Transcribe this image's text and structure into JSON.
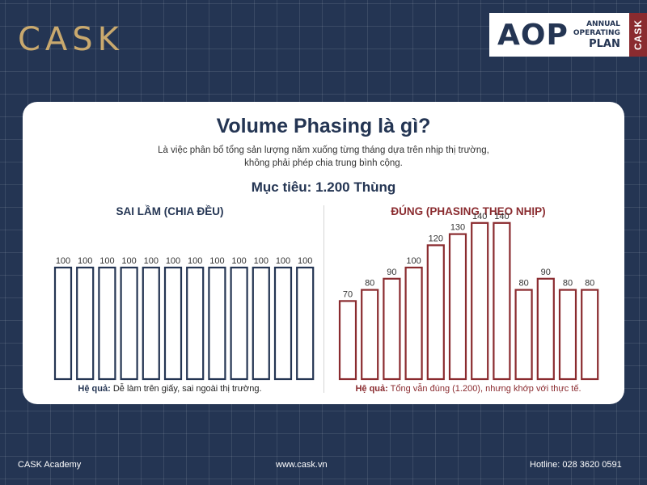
{
  "brand": "CASK",
  "badge": {
    "big": "AOP",
    "line1": "ANNUAL",
    "line2": "OPERATING",
    "line3": "PLAN",
    "tag": "CASK"
  },
  "card": {
    "title": "Volume Phasing là gì?",
    "subtitle_line1": "Là việc phân bổ tổng sản lượng năm xuống từng tháng dựa trên nhịp thị trường,",
    "subtitle_line2": "không phải phép chia trung bình cộng.",
    "goal": "Mục tiêu: 1.200 Thùng"
  },
  "footer": {
    "left": "CASK Academy",
    "center": "www.cask.vn",
    "right": "Hotline: 028 3620 0591"
  },
  "colors": {
    "navy": "#243553",
    "maroon": "#8a2b2f",
    "gold": "#c9a96e"
  },
  "chart_data": [
    {
      "type": "bar",
      "title": "SAI LẦM (CHIA ĐỀU)",
      "values": [
        100,
        100,
        100,
        100,
        100,
        100,
        100,
        100,
        100,
        100,
        100,
        100
      ],
      "ylim": [
        0,
        160
      ],
      "color": "#243553",
      "note_label": "Hệ quả:",
      "note_text": " Dễ làm trên giấy, sai ngoài thị trường."
    },
    {
      "type": "bar",
      "title": "ĐÚNG (PHASING THEO NHỊP)",
      "values": [
        70,
        80,
        90,
        100,
        120,
        130,
        140,
        140,
        80,
        90,
        80,
        80
      ],
      "ylim": [
        0,
        160
      ],
      "color": "#8a2b2f",
      "note_label": "Hệ quả:",
      "note_text": " Tổng vẫn đúng (1.200), nhưng khớp với thực tế."
    }
  ]
}
